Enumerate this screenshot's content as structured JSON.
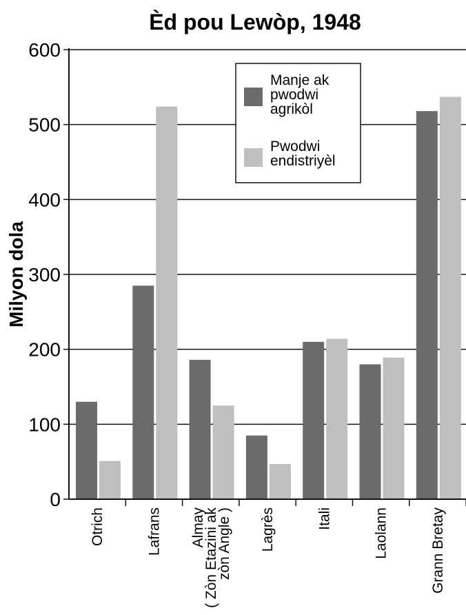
{
  "chart_data": {
    "type": "bar",
    "title": "Èd pou Lewòp, 1948",
    "xlabel": "",
    "ylabel": "Milyon dola",
    "ylim": [
      0,
      600
    ],
    "yticks": [
      "0",
      "100",
      "200",
      "300",
      "400",
      "500",
      "600"
    ],
    "grid": true,
    "legend_position": "top-right",
    "categories": [
      [
        "Otrich"
      ],
      [
        "Lafrans"
      ],
      [
        "Almay",
        "( Zòn Etazini ak",
        "zòn Angle )"
      ],
      [
        "Lagrès"
      ],
      [
        "Itali"
      ],
      [
        "Laolann"
      ],
      [
        "Grann Bretay"
      ]
    ],
    "series": [
      {
        "name": [
          "Manje ak",
          "pwodwi",
          "agrikòl"
        ],
        "color": "#6b6b6e",
        "values": [
          130,
          285,
          186,
          85,
          210,
          180,
          518
        ]
      },
      {
        "name": [
          "Pwodwi",
          "endistriyèl"
        ],
        "color": "#bfbfc2",
        "values": [
          51,
          524,
          125,
          47,
          214,
          189,
          537
        ]
      }
    ]
  }
}
